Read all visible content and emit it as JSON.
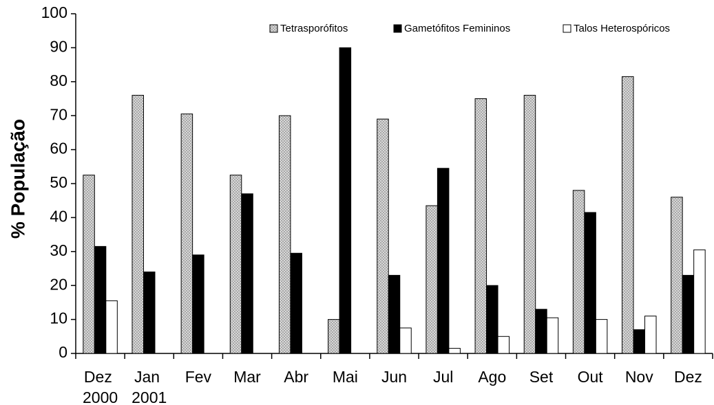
{
  "chart_data": {
    "type": "bar",
    "y_label": "% População",
    "categories": [
      "Dez 2000",
      "Jan 2001",
      "Fev",
      "Mar",
      "Abr",
      "Mai",
      "Jun",
      "Jul",
      "Ago",
      "Set",
      "Out",
      "Nov",
      "Dez"
    ],
    "series": [
      {
        "name": "Tetrasporófitos",
        "color": "#a8a8a8",
        "values": [
          52.5,
          76,
          70.5,
          52.5,
          70,
          10,
          69,
          43.5,
          75,
          76,
          48,
          81.5,
          46
        ]
      },
      {
        "name": "Gametófitos Femininos",
        "color": "#000000",
        "values": [
          31.5,
          24,
          29,
          47,
          29.5,
          90,
          23,
          54.5,
          20,
          13,
          41.5,
          7,
          23
        ]
      },
      {
        "name": "Talos Heterospóricos",
        "color": "#ffffff",
        "values": [
          15.5,
          0,
          0,
          0,
          0,
          0,
          7.5,
          1.5,
          5,
          10.5,
          10,
          11,
          30.5
        ]
      }
    ],
    "ylim": [
      0,
      100
    ],
    "yticks": [
      0,
      10,
      20,
      30,
      40,
      50,
      60,
      70,
      80,
      90,
      100
    ],
    "grid": false,
    "legend": "upper right"
  }
}
